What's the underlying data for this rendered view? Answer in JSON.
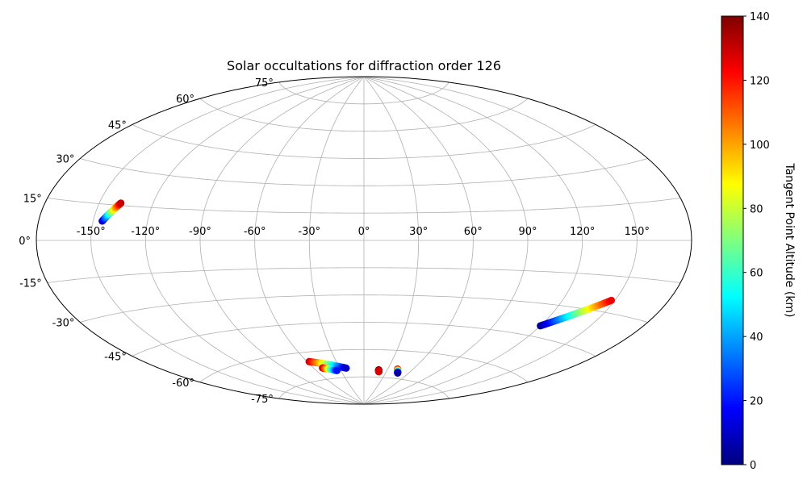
{
  "chart_data": {
    "type": "scatter",
    "projection": "aitoff",
    "title": "Solar occultations for diffraction order 126",
    "grid": true,
    "lon_ticks": [
      "-150°",
      "-120°",
      "-90°",
      "-60°",
      "-30°",
      "0°",
      "30°",
      "60°",
      "90°",
      "120°",
      "150°"
    ],
    "lat_ticks": [
      "75°",
      "60°",
      "45°",
      "30°",
      "15°",
      "0°",
      "-15°",
      "-30°",
      "-45°",
      "-60°",
      "-75°"
    ],
    "colorbar": {
      "label": "Tangent Point Altitude (km)",
      "colormap": "jet",
      "range": [
        0,
        140
      ],
      "ticks": [
        "0",
        "20",
        "40",
        "60",
        "80",
        "100",
        "120",
        "140"
      ]
    },
    "tracks": [
      {
        "lon_start": -145,
        "lat_start": 8,
        "lon_end": -138,
        "lat_end": 16,
        "alt_start": 5,
        "alt_end": 130
      },
      {
        "lon_start": 120,
        "lat_start": -40,
        "lon_end": 148,
        "lat_end": -25,
        "alt_start": 2,
        "alt_end": 125
      },
      {
        "lon_start": -58,
        "lat_start": -65,
        "lon_end": -22,
        "lat_end": -70,
        "alt_start": 130,
        "alt_end": 10
      },
      {
        "lon_start": -50,
        "lat_start": -69,
        "lon_end": -35,
        "lat_end": -71,
        "alt_start": 135,
        "alt_end": 20
      },
      {
        "lon_start": 19,
        "lat_start": -71,
        "lon_end": 20,
        "lat_end": -72,
        "alt_start": 140,
        "alt_end": 128
      },
      {
        "lon_start": 42,
        "lat_start": -70,
        "lon_end": 46,
        "lat_end": -72,
        "alt_start": 140,
        "alt_end": 5
      }
    ]
  }
}
